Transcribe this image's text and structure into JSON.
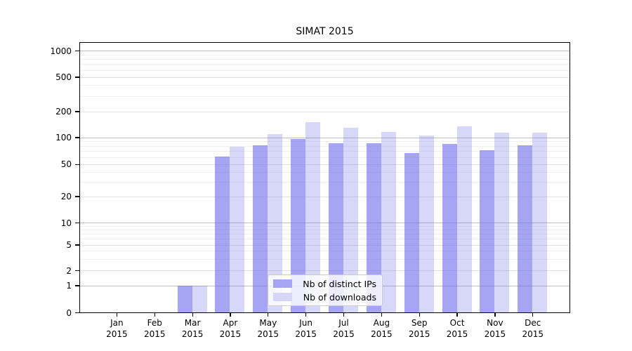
{
  "title": "SIMAT 2015",
  "chart_data": {
    "type": "bar",
    "title": "SIMAT 2015",
    "scale": "symlog-like",
    "grid": true,
    "legend_position": "lower-center",
    "categories": [
      "Jan",
      "Feb",
      "Mar",
      "Apr",
      "May",
      "Jun",
      "Jul",
      "Aug",
      "Sep",
      "Oct",
      "Nov",
      "Dec"
    ],
    "year": "2015",
    "y_ticks": [
      0,
      1,
      2,
      5,
      10,
      20,
      50,
      100,
      200,
      500,
      1000
    ],
    "ylim": [
      0,
      1000
    ],
    "series": [
      {
        "name": "Nb of distinct IPs",
        "color_rgba": "rgba(110,110,235,0.62)",
        "legend_hex": "#a5a5f3",
        "values": [
          0,
          0,
          1,
          61,
          82,
          96,
          87,
          86,
          67,
          85,
          72,
          82
        ]
      },
      {
        "name": "Nb of downloads",
        "color_rgba": "rgba(110,110,235,0.28)",
        "legend_hex": "#d6d6f9",
        "values": [
          0,
          0,
          1,
          79,
          110,
          150,
          130,
          116,
          105,
          134,
          115,
          114
        ]
      }
    ],
    "colors": {
      "grid_decade": "#bdbdbd",
      "grid_labeled": "#e2e2e2",
      "grid_minor": "#f0f0f0",
      "axis": "#000000"
    }
  }
}
